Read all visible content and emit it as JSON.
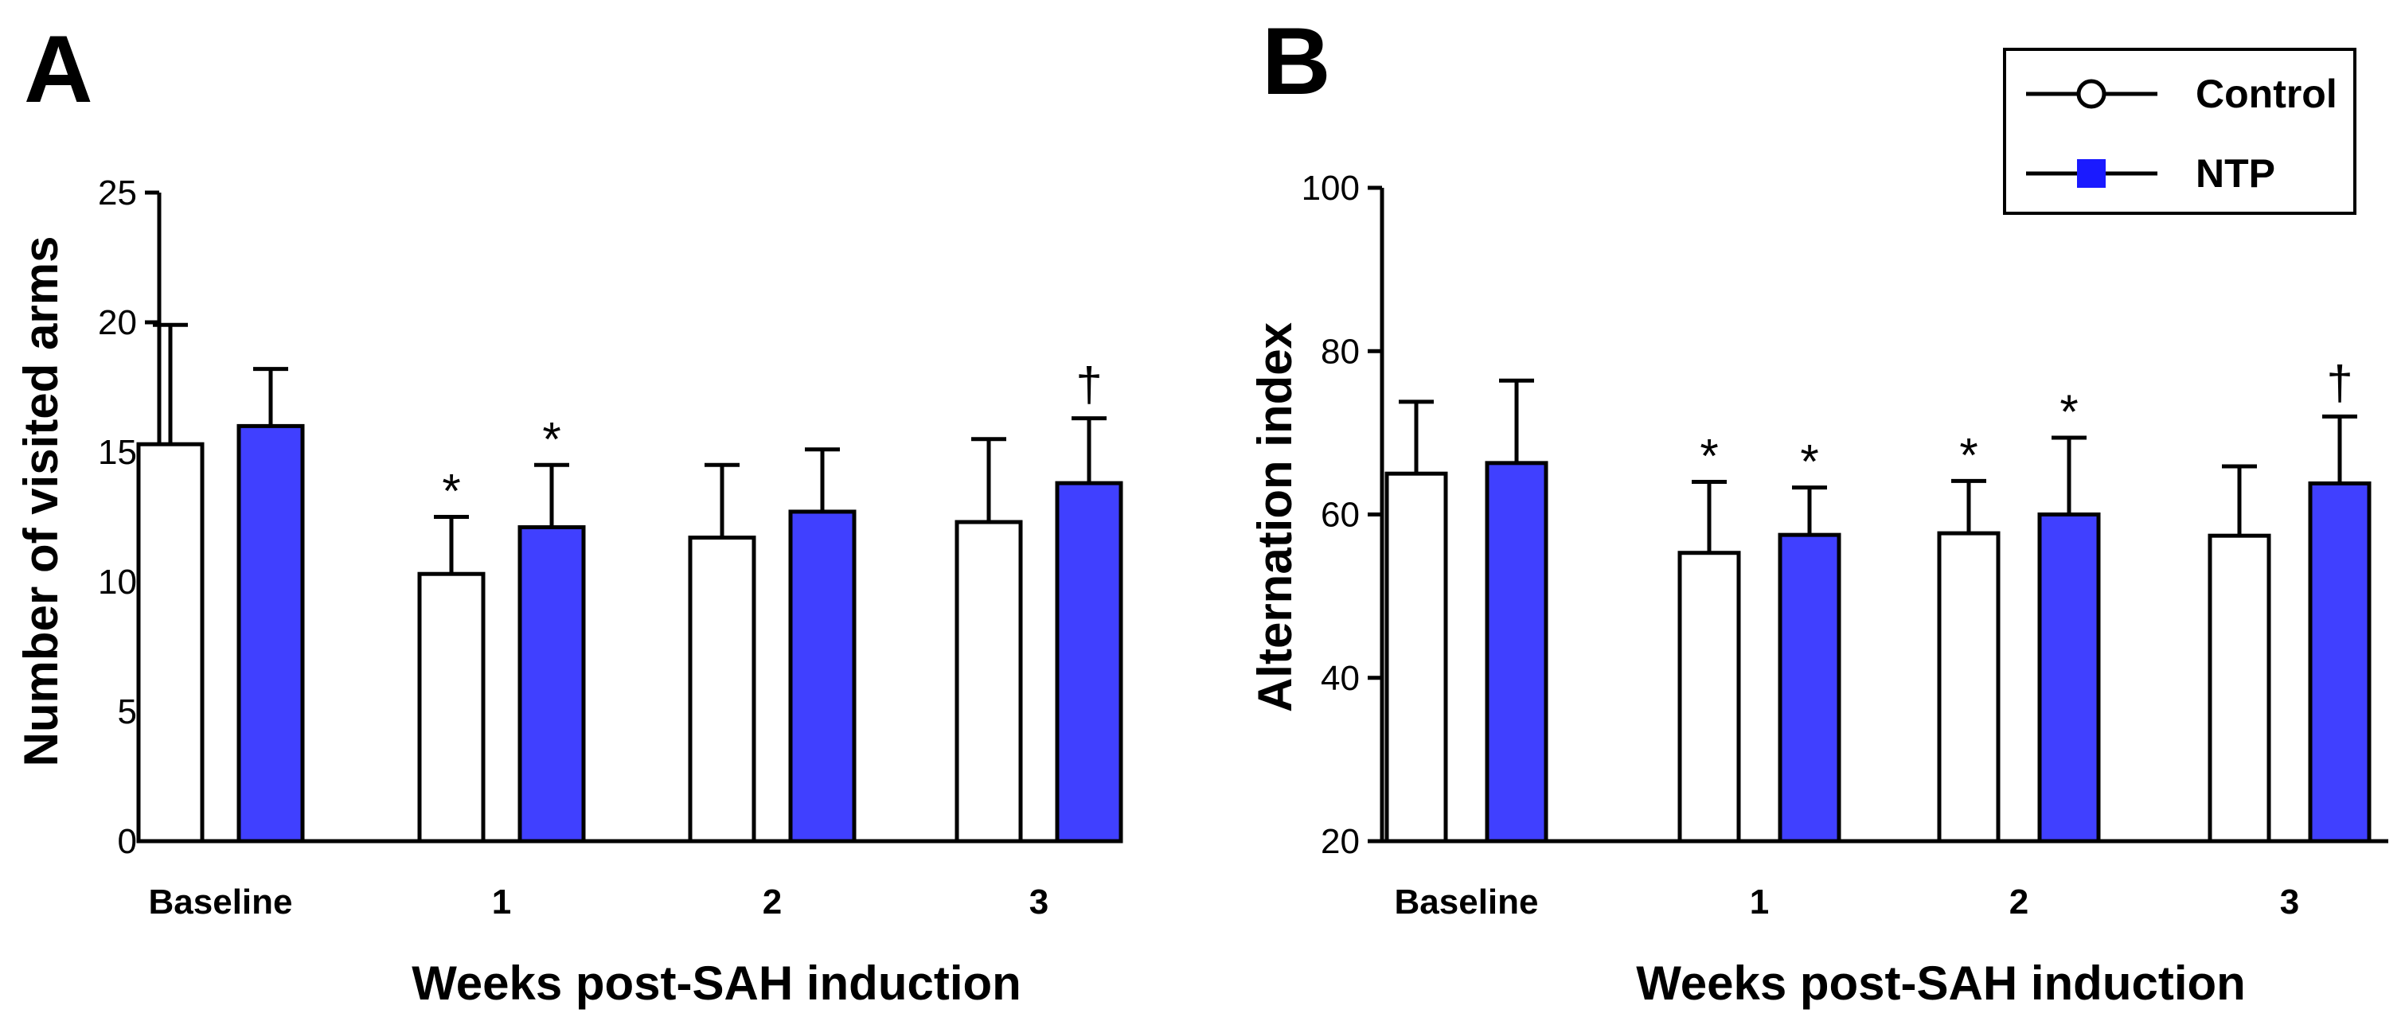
{
  "chart_data": [
    {
      "type": "bar",
      "panel": "A",
      "xlabel": "Weeks post-SAH induction",
      "ylabel": "Number of visited arms",
      "categories": [
        "Baseline",
        "1",
        "2",
        "3"
      ],
      "ylim": [
        0,
        25
      ],
      "yticks": [
        "0",
        "5",
        "10",
        "15",
        "20",
        "25"
      ],
      "series": [
        {
          "name": "Control",
          "color": "#ffffff",
          "values": [
            15.3,
            10.3,
            11.7,
            12.3
          ],
          "errors": [
            4.6,
            2.2,
            2.8,
            3.2
          ]
        },
        {
          "name": "NTP",
          "color": "#4040ff",
          "values": [
            16.0,
            12.1,
            12.7,
            13.8
          ],
          "errors": [
            2.2,
            2.4,
            2.4,
            2.5
          ]
        }
      ],
      "annotations": [
        {
          "series": 0,
          "category": 1,
          "text": "*"
        },
        {
          "series": 1,
          "category": 1,
          "text": "*"
        },
        {
          "series": 1,
          "category": 3,
          "text": "†"
        }
      ]
    },
    {
      "type": "bar",
      "panel": "B",
      "xlabel": "Weeks post-SAH induction",
      "ylabel": "Alternation index",
      "categories": [
        "Baseline",
        "1",
        "2",
        "3"
      ],
      "ylim": [
        20,
        100
      ],
      "yticks": [
        "20",
        "40",
        "60",
        "80",
        "100"
      ],
      "series": [
        {
          "name": "Control",
          "color": "#ffffff",
          "values": [
            65,
            55.3,
            57.7,
            57.4
          ],
          "errors": [
            8.8,
            8.7,
            6.4,
            8.5
          ]
        },
        {
          "name": "NTP",
          "color": "#4040ff",
          "values": [
            66.3,
            57.5,
            60,
            63.8
          ],
          "errors": [
            10.1,
            5.8,
            9.4,
            8.2
          ]
        }
      ],
      "annotations": [
        {
          "series": 0,
          "category": 1,
          "text": "*"
        },
        {
          "series": 1,
          "category": 1,
          "text": "*"
        },
        {
          "series": 0,
          "category": 2,
          "text": "*"
        },
        {
          "series": 1,
          "category": 2,
          "text": "*"
        },
        {
          "series": 1,
          "category": 3,
          "text": "†"
        }
      ],
      "legend": {
        "position": "top-right",
        "entries": [
          "Control",
          "NTP"
        ]
      }
    }
  ]
}
